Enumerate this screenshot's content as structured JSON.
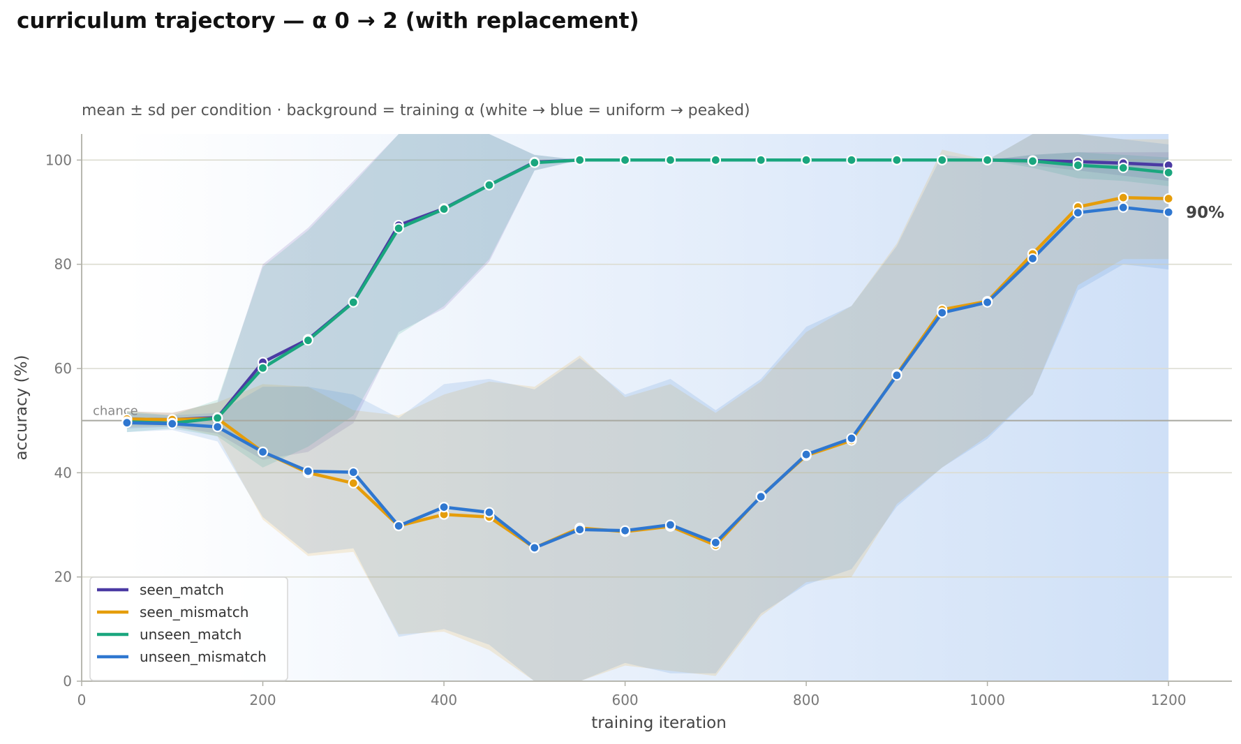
{
  "title": "curriculum trajectory — α 0 → 2 (with replacement)",
  "chart_data": {
    "type": "line",
    "title": "curriculum trajectory — α 0 → 2 (with replacement)",
    "subtitle": "mean ± sd per condition · background = training α (white → blue = uniform → peaked)",
    "xlabel": "training iteration",
    "ylabel": "accuracy (%)",
    "xlim": [
      0,
      1270
    ],
    "ylim": [
      0,
      105
    ],
    "xticks": [
      0,
      200,
      400,
      600,
      800,
      1000,
      1200
    ],
    "yticks": [
      0,
      20,
      40,
      60,
      80,
      100
    ],
    "grid": "horizontal",
    "legend_position": "lower-left",
    "chance_level": 50,
    "chance_label": "chance",
    "end_label": "90%",
    "background": "training α gradient from white (uniform) to blue (peaked)",
    "background_colors": [
      "#ffffff",
      "#cfe0f7"
    ],
    "x": [
      50,
      100,
      150,
      200,
      250,
      300,
      350,
      400,
      450,
      500,
      550,
      600,
      650,
      700,
      750,
      800,
      850,
      900,
      950,
      1000,
      1050,
      1100,
      1150,
      1200
    ],
    "series": [
      {
        "name": "seen_match",
        "color": "#4b3aa3",
        "values": [
          50.3,
          50.2,
          50.6,
          61.2,
          65.6,
          72.8,
          87.5,
          90.7,
          95.2,
          99.6,
          100,
          100,
          100,
          100,
          100,
          100,
          100,
          100,
          100,
          100,
          99.9,
          99.7,
          99.4,
          99.0
        ],
        "sd_low": [
          48.5,
          48.8,
          47.5,
          42.5,
          44.0,
          49.5,
          67.0,
          71.5,
          80.5,
          98.0,
          100,
          100,
          100,
          100,
          100,
          100,
          100,
          100,
          100,
          100,
          99.0,
          98.0,
          97.0,
          96.0
        ],
        "sd_high": [
          51.8,
          51.5,
          53.5,
          80.0,
          87.0,
          96.0,
          106,
          106,
          106,
          101,
          100,
          100,
          100,
          100,
          100,
          100,
          100,
          100,
          100,
          100,
          101,
          101.5,
          101.5,
          101.5
        ]
      },
      {
        "name": "seen_mismatch",
        "color": "#e59d0b",
        "values": [
          50.3,
          50.2,
          50.4,
          44.0,
          40.0,
          38.0,
          29.8,
          32.0,
          31.5,
          25.6,
          29.4,
          28.7,
          29.7,
          26.1,
          35.5,
          43.3,
          46.2,
          58.9,
          71.3,
          72.9,
          82.0,
          91.0,
          92.8,
          92.6
        ],
        "sd_low": [
          48.8,
          49.0,
          47.0,
          31.0,
          24.0,
          24.8,
          9.0,
          9.5,
          6.0,
          -4.0,
          -3.0,
          3.0,
          2.0,
          1.0,
          12.5,
          19.0,
          20.0,
          34.0,
          41.0,
          47.0,
          55.0,
          76.0,
          81.0,
          81.0
        ],
        "sd_high": [
          51.8,
          51.5,
          53.5,
          57.0,
          56.5,
          52.0,
          51.0,
          55.0,
          57.5,
          56.5,
          62.5,
          54.5,
          57.0,
          51.5,
          57.5,
          67.0,
          72.0,
          84.0,
          102,
          100,
          106,
          106,
          104,
          104
        ]
      },
      {
        "name": "unseen_match",
        "color": "#1aa67e",
        "values": [
          49.8,
          49.5,
          50.5,
          60.1,
          65.4,
          72.7,
          86.9,
          90.6,
          95.2,
          99.5,
          100,
          100,
          100,
          100,
          100,
          100,
          100,
          100,
          100,
          100,
          99.8,
          99.0,
          98.5,
          97.6
        ],
        "sd_low": [
          47.8,
          48.5,
          47.0,
          41.0,
          45.0,
          51.0,
          66.5,
          72.0,
          81.0,
          98.0,
          100,
          100,
          100,
          100,
          100,
          100,
          100,
          100,
          100,
          100,
          98.5,
          96.5,
          96.0,
          95.0
        ],
        "sd_high": [
          51.8,
          51.0,
          54.0,
          79.5,
          86.5,
          95.5,
          106,
          106,
          106,
          101,
          100,
          100,
          100,
          100,
          100,
          100,
          100,
          100,
          100,
          100,
          101,
          101.5,
          101,
          100.5
        ]
      },
      {
        "name": "unseen_mismatch",
        "color": "#2f77d0",
        "values": [
          49.6,
          49.4,
          48.8,
          44.0,
          40.3,
          40.1,
          29.8,
          33.4,
          32.4,
          25.6,
          29.1,
          28.9,
          30.0,
          26.6,
          35.4,
          43.5,
          46.6,
          58.7,
          70.7,
          72.7,
          81.1,
          89.9,
          90.9,
          90.0
        ],
        "sd_low": [
          47.8,
          48.2,
          46.0,
          31.5,
          24.5,
          25.5,
          8.5,
          10.0,
          7.0,
          -3.0,
          -3.5,
          3.5,
          1.5,
          1.5,
          13.0,
          18.5,
          21.5,
          33.5,
          41.0,
          46.5,
          55.0,
          75.0,
          80.0,
          79.0
        ],
        "sd_high": [
          51.5,
          51.0,
          51.5,
          56.5,
          56.5,
          55.0,
          50.5,
          57.0,
          58.0,
          56.0,
          62.0,
          55.0,
          58.0,
          52.0,
          58.0,
          68.0,
          72.0,
          83.5,
          101,
          100,
          106,
          106,
          104,
          103
        ]
      }
    ]
  }
}
